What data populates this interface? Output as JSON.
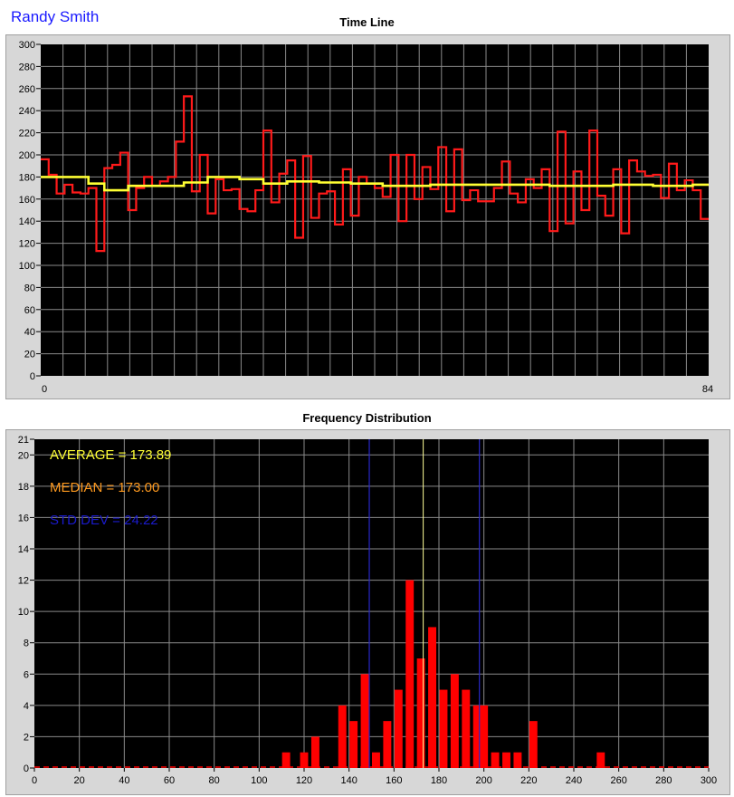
{
  "header": {
    "name": "Randy Smith"
  },
  "colors": {
    "plot_bg": "#000000",
    "grid": "#8a8a8a",
    "raw": "#ff1a1a",
    "avg": "#ffff33",
    "bar": "#ff0000",
    "average_text": "#ffff33",
    "median_text": "#ff9a1f",
    "stddev_text": "#1a1acc",
    "median_line": "#ffff99",
    "std_lines": "#2828c8"
  },
  "chart_data": [
    {
      "type": "line",
      "title": "Time Line",
      "xlim": [
        0,
        84
      ],
      "ylim": [
        0,
        300
      ],
      "x_ticks": [
        0,
        84
      ],
      "y_ticks": [
        0,
        20,
        40,
        60,
        80,
        100,
        120,
        140,
        160,
        180,
        200,
        220,
        240,
        260,
        280,
        300
      ],
      "grid": true,
      "series": [
        {
          "values": [
            196,
            182,
            165,
            173,
            166,
            165,
            170,
            113,
            188,
            191,
            202,
            150,
            170,
            180,
            172,
            176,
            180,
            212,
            253,
            167,
            200,
            147,
            178,
            168,
            169,
            151,
            149,
            168,
            222,
            157,
            183,
            195,
            125,
            199,
            143,
            165,
            167,
            137,
            187,
            145,
            180,
            174,
            170,
            162,
            200,
            140,
            200,
            160,
            189,
            169,
            207,
            149,
            205,
            159,
            168,
            158,
            158,
            170,
            194,
            165,
            157,
            178,
            170,
            187,
            131,
            221,
            138,
            185,
            150,
            222,
            163,
            145,
            187,
            129,
            195,
            185,
            181,
            182,
            161,
            192,
            168,
            177,
            168,
            142
          ]
        },
        {
          "values": [
            180,
            180,
            180,
            180,
            180,
            180,
            174,
            174,
            168,
            168,
            168,
            172,
            172,
            172,
            172,
            172,
            172,
            172,
            175,
            175,
            175,
            180,
            180,
            180,
            180,
            178,
            178,
            178,
            174,
            174,
            174,
            176,
            176,
            176,
            176,
            175,
            175,
            175,
            175,
            174,
            174,
            174,
            174,
            172,
            172,
            172,
            172,
            172,
            172,
            173,
            173,
            173,
            173,
            173,
            173,
            173,
            173,
            173,
            173,
            173,
            173,
            173,
            173,
            173,
            172,
            172,
            172,
            172,
            172,
            172,
            172,
            172,
            173,
            173,
            173,
            173,
            173,
            172,
            172,
            172,
            172,
            172,
            173,
            173
          ]
        }
      ]
    },
    {
      "type": "bar",
      "title": "Frequency Distribution",
      "xlim": [
        0,
        300
      ],
      "ylim": [
        0,
        21
      ],
      "x_ticks": [
        0,
        20,
        40,
        60,
        80,
        100,
        120,
        140,
        160,
        180,
        200,
        220,
        240,
        260,
        280,
        300
      ],
      "y_ticks": [
        0,
        2,
        4,
        6,
        8,
        10,
        12,
        14,
        16,
        18,
        20,
        21
      ],
      "grid": true,
      "bin_width": 4,
      "x": [
        112,
        120,
        125,
        137,
        142,
        147,
        152,
        157,
        162,
        167,
        172,
        177,
        182,
        187,
        192,
        197,
        200,
        205,
        210,
        215,
        222,
        252
      ],
      "values": [
        1,
        1,
        2,
        4,
        3,
        6,
        1,
        3,
        5,
        12,
        7,
        9,
        5,
        6,
        5,
        4,
        4,
        1,
        1,
        1,
        3,
        1
      ],
      "annotations": [
        {
          "text": "AVERAGE = 173.89",
          "color": "#ffff33"
        },
        {
          "text": "MEDIAN = 173.00",
          "color": "#ff9a1f"
        },
        {
          "text": "STD DEV = 24.22",
          "color": "#1a1acc"
        }
      ],
      "median_line_x": 173,
      "std_lines_x": [
        149,
        198
      ]
    }
  ]
}
